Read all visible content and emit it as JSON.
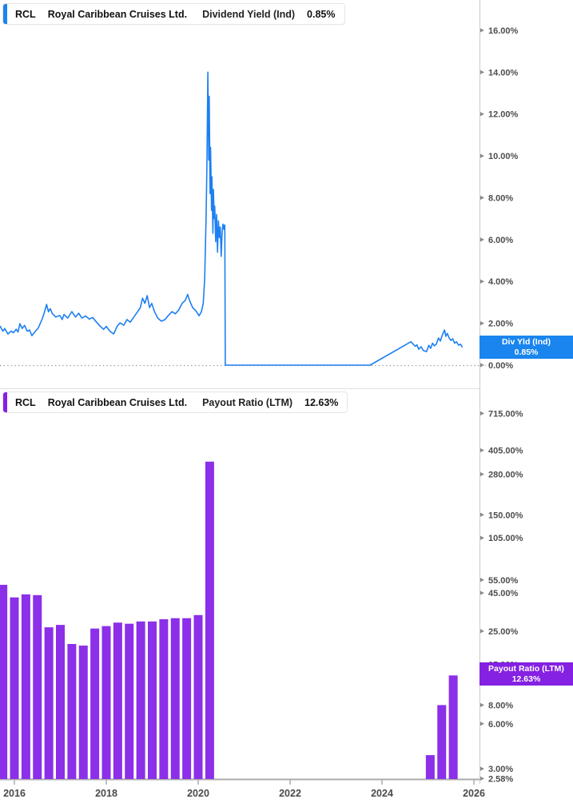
{
  "page": {
    "background": "#ffffff"
  },
  "axis": {
    "x_labels": [
      "2016",
      "2018",
      "2020",
      "2022",
      "2024",
      "2026"
    ],
    "x_years": [
      2016,
      2018,
      2020,
      2022,
      2024,
      2026
    ]
  },
  "panels": {
    "dividend_yield": {
      "header": {
        "ticker": "RCL",
        "company": "Royal Caribbean Cruises Ltd.",
        "metric": "Dividend Yield (Ind)",
        "value": "0.85%"
      },
      "badge": {
        "line1": "Div Yld (Ind)",
        "line2": "0.85%"
      },
      "accent_color": "#1a85ee",
      "line_color": "#1d7ff2",
      "ytick_labels": [
        "16.00%",
        "14.00%",
        "12.00%",
        "10.00%",
        "8.00%",
        "6.00%",
        "4.00%",
        "2.00%",
        "0.00%"
      ],
      "yticks": [
        16,
        14,
        12,
        10,
        8,
        6,
        4,
        2,
        0
      ]
    },
    "payout_ratio": {
      "header": {
        "ticker": "RCL",
        "company": "Royal Caribbean Cruises Ltd.",
        "metric": "Payout Ratio (LTM)",
        "value": "12.63%"
      },
      "badge": {
        "line1": "Payout Ratio (LTM)",
        "line2": "12.63%"
      },
      "accent_color": "#8421e2",
      "bar_color": "#8b2fe8",
      "ytick_labels": [
        "715.00%",
        "405.00%",
        "280.00%",
        "150.00%",
        "105.00%",
        "55.00%",
        "45.00%",
        "25.00%",
        "15.00%",
        "8.00%",
        "6.00%",
        "3.00%",
        "2.58%"
      ],
      "yticks": [
        715,
        405,
        280,
        150,
        105,
        55,
        45,
        25,
        15,
        8,
        6,
        3,
        2.58
      ]
    }
  },
  "chart_data": [
    {
      "type": "line",
      "name": "RCL Dividend Yield (Ind)",
      "units": "percent",
      "legend_position": "right-axis-flag",
      "grid": false,
      "x_range": [
        2015.69,
        2026.1
      ],
      "ylim": [
        0,
        17.4
      ],
      "zero_line": "dotted",
      "last_value": 0.85,
      "points": [
        [
          2015.69,
          1.87
        ],
        [
          2015.75,
          1.62
        ],
        [
          2015.79,
          1.75
        ],
        [
          2015.86,
          1.49
        ],
        [
          2015.93,
          1.63
        ],
        [
          2015.98,
          1.55
        ],
        [
          2016.04,
          1.72
        ],
        [
          2016.08,
          1.58
        ],
        [
          2016.12,
          1.98
        ],
        [
          2016.17,
          1.75
        ],
        [
          2016.22,
          1.9
        ],
        [
          2016.28,
          1.62
        ],
        [
          2016.33,
          1.68
        ],
        [
          2016.38,
          1.41
        ],
        [
          2016.45,
          1.6
        ],
        [
          2016.52,
          1.78
        ],
        [
          2016.6,
          2.18
        ],
        [
          2016.65,
          2.5
        ],
        [
          2016.7,
          2.9
        ],
        [
          2016.74,
          2.55
        ],
        [
          2016.78,
          2.7
        ],
        [
          2016.83,
          2.45
        ],
        [
          2016.9,
          2.3
        ],
        [
          2016.99,
          2.37
        ],
        [
          2017.04,
          2.18
        ],
        [
          2017.08,
          2.42
        ],
        [
          2017.16,
          2.25
        ],
        [
          2017.25,
          2.56
        ],
        [
          2017.33,
          2.3
        ],
        [
          2017.4,
          2.48
        ],
        [
          2017.47,
          2.25
        ],
        [
          2017.55,
          2.35
        ],
        [
          2017.63,
          2.2
        ],
        [
          2017.7,
          2.28
        ],
        [
          2017.79,
          2.05
        ],
        [
          2017.86,
          1.88
        ],
        [
          2017.94,
          1.71
        ],
        [
          2018.0,
          1.85
        ],
        [
          2018.08,
          1.62
        ],
        [
          2018.16,
          1.49
        ],
        [
          2018.24,
          1.87
        ],
        [
          2018.3,
          2.02
        ],
        [
          2018.38,
          1.91
        ],
        [
          2018.45,
          2.18
        ],
        [
          2018.52,
          2.05
        ],
        [
          2018.6,
          2.3
        ],
        [
          2018.68,
          2.55
        ],
        [
          2018.74,
          2.75
        ],
        [
          2018.79,
          3.2
        ],
        [
          2018.84,
          2.95
        ],
        [
          2018.89,
          3.32
        ],
        [
          2018.94,
          2.75
        ],
        [
          2018.99,
          2.95
        ],
        [
          2019.05,
          2.55
        ],
        [
          2019.12,
          2.25
        ],
        [
          2019.2,
          2.1
        ],
        [
          2019.28,
          2.18
        ],
        [
          2019.35,
          2.37
        ],
        [
          2019.43,
          2.56
        ],
        [
          2019.5,
          2.45
        ],
        [
          2019.57,
          2.62
        ],
        [
          2019.65,
          2.95
        ],
        [
          2019.72,
          3.1
        ],
        [
          2019.77,
          3.38
        ],
        [
          2019.82,
          3.05
        ],
        [
          2019.88,
          2.75
        ],
        [
          2019.95,
          2.6
        ],
        [
          2020.02,
          2.36
        ],
        [
          2020.07,
          2.55
        ],
        [
          2020.11,
          2.95
        ],
        [
          2020.14,
          4.1
        ],
        [
          2020.17,
          6.9
        ],
        [
          2020.19,
          9.5
        ],
        [
          2020.21,
          14.0
        ],
        [
          2020.23,
          9.8
        ],
        [
          2020.24,
          12.85
        ],
        [
          2020.26,
          8.2
        ],
        [
          2020.27,
          10.4
        ],
        [
          2020.29,
          7.4
        ],
        [
          2020.3,
          9.0
        ],
        [
          2020.32,
          6.3
        ],
        [
          2020.33,
          8.4
        ],
        [
          2020.35,
          7.0
        ],
        [
          2020.36,
          7.6
        ],
        [
          2020.38,
          5.9
        ],
        [
          2020.4,
          7.2
        ],
        [
          2020.42,
          5.4
        ],
        [
          2020.44,
          6.9
        ],
        [
          2020.46,
          6.1
        ],
        [
          2020.48,
          6.6
        ],
        [
          2020.5,
          5.2
        ],
        [
          2020.52,
          6.3
        ],
        [
          2020.54,
          6.74
        ],
        [
          2020.56,
          6.5
        ],
        [
          2020.58,
          6.7
        ],
        [
          2020.59,
          0.0
        ],
        [
          2023.74,
          0.0
        ],
        [
          2024.63,
          1.12
        ],
        [
          2024.68,
          1.0
        ],
        [
          2024.72,
          0.9
        ],
        [
          2024.76,
          0.97
        ],
        [
          2024.8,
          0.76
        ],
        [
          2024.85,
          0.88
        ],
        [
          2024.9,
          0.7
        ],
        [
          2024.97,
          0.65
        ],
        [
          2025.02,
          0.95
        ],
        [
          2025.06,
          0.8
        ],
        [
          2025.1,
          1.05
        ],
        [
          2025.14,
          0.92
        ],
        [
          2025.18,
          1.0
        ],
        [
          2025.23,
          1.3
        ],
        [
          2025.27,
          1.15
        ],
        [
          2025.31,
          1.42
        ],
        [
          2025.36,
          1.68
        ],
        [
          2025.39,
          1.38
        ],
        [
          2025.42,
          1.52
        ],
        [
          2025.46,
          1.3
        ],
        [
          2025.5,
          1.18
        ],
        [
          2025.54,
          1.26
        ],
        [
          2025.58,
          1.05
        ],
        [
          2025.62,
          1.12
        ],
        [
          2025.67,
          0.95
        ],
        [
          2025.71,
          1.0
        ],
        [
          2025.75,
          0.85
        ]
      ]
    },
    {
      "type": "bar",
      "name": "RCL Payout Ratio (LTM)",
      "units": "percent",
      "scale": "log",
      "legend_position": "right-axis-flag",
      "grid": false,
      "x_range": [
        2015.69,
        2026.1
      ],
      "ylim": [
        2.58,
        1000
      ],
      "last_value": 12.63,
      "bars": [
        [
          2015.75,
          51.0
        ],
        [
          2016.0,
          42.0
        ],
        [
          2016.25,
          44.0
        ],
        [
          2016.5,
          43.5
        ],
        [
          2016.75,
          26.5
        ],
        [
          2017.0,
          27.5
        ],
        [
          2017.25,
          20.5
        ],
        [
          2017.5,
          20.0
        ],
        [
          2017.75,
          26.0
        ],
        [
          2018.0,
          27.0
        ],
        [
          2018.25,
          28.5
        ],
        [
          2018.5,
          28.0
        ],
        [
          2018.75,
          29.0
        ],
        [
          2019.0,
          29.0
        ],
        [
          2019.25,
          30.0
        ],
        [
          2019.5,
          30.5
        ],
        [
          2019.75,
          30.5
        ],
        [
          2020.0,
          32.0
        ],
        [
          2020.25,
          340.0
        ],
        [
          2025.05,
          3.7
        ],
        [
          2025.3,
          8.0
        ],
        [
          2025.55,
          12.63
        ]
      ]
    }
  ]
}
